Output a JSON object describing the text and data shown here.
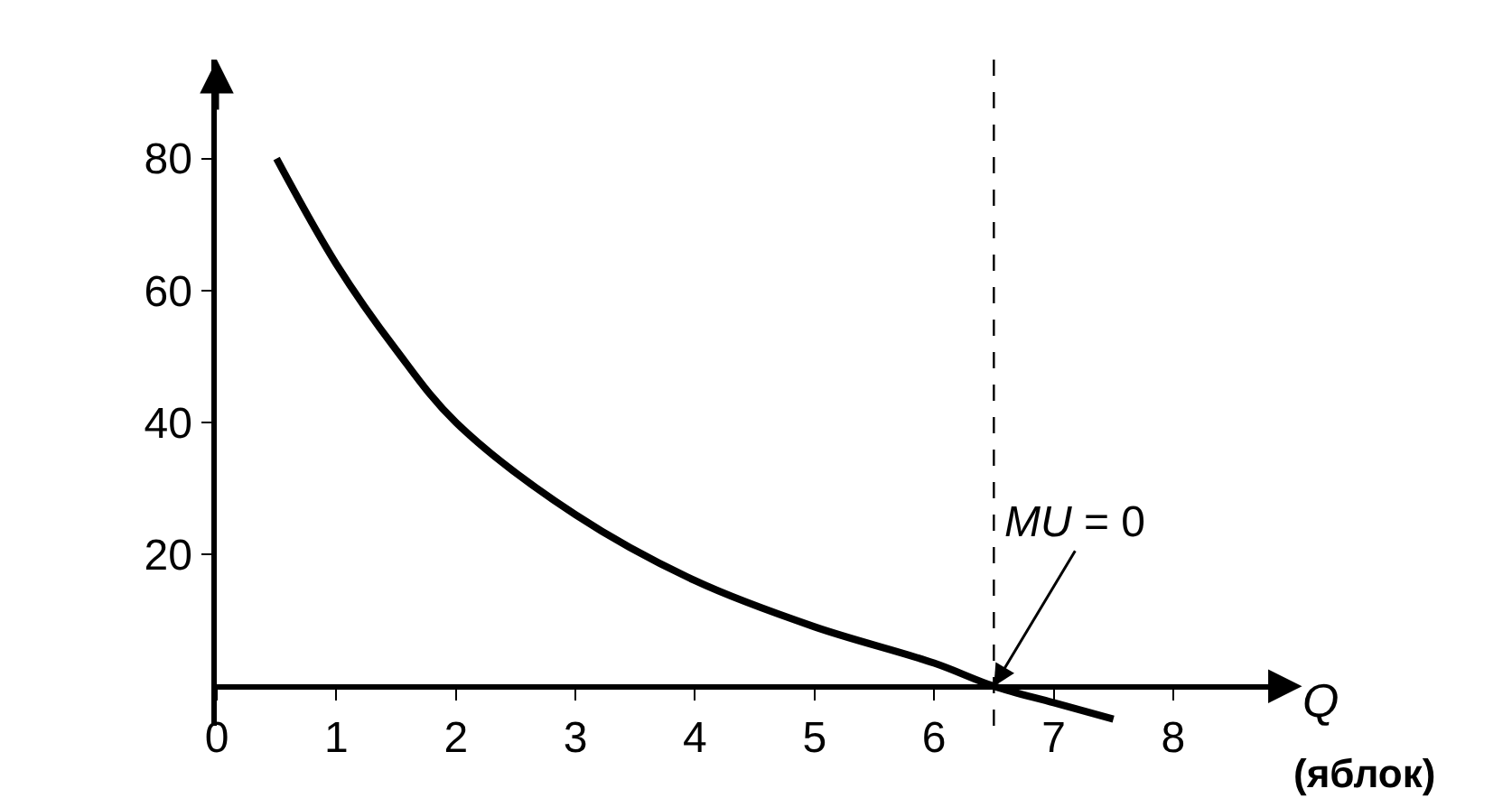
{
  "chart_data": {
    "type": "line",
    "x": [
      0.5,
      1,
      1.5,
      2,
      3,
      4,
      5,
      6,
      6.5,
      7,
      7.5
    ],
    "series": [
      {
        "color": "#000000",
        "values": [
          80,
          64,
          51,
          40,
          26,
          16,
          9,
          3.5,
          0,
          -2.5,
          -5
        ]
      }
    ],
    "xlim": [
      0,
      8.9
    ],
    "ylim": [
      -6,
      95
    ],
    "xticks": [
      0,
      1,
      2,
      3,
      4,
      5,
      6,
      7,
      8
    ],
    "yticks": [
      20,
      40,
      60,
      80
    ],
    "xlabel": "Q",
    "annotations": [
      {
        "text": "MU = 0",
        "x": 6.5,
        "y": 0
      },
      "(яблок)"
    ],
    "ref_lines": [
      {
        "axis": "x",
        "value": 6.5,
        "label": null,
        "color": "#000000",
        "line_style": "dashed"
      }
    ],
    "marker": "none",
    "line_style": "solid"
  }
}
